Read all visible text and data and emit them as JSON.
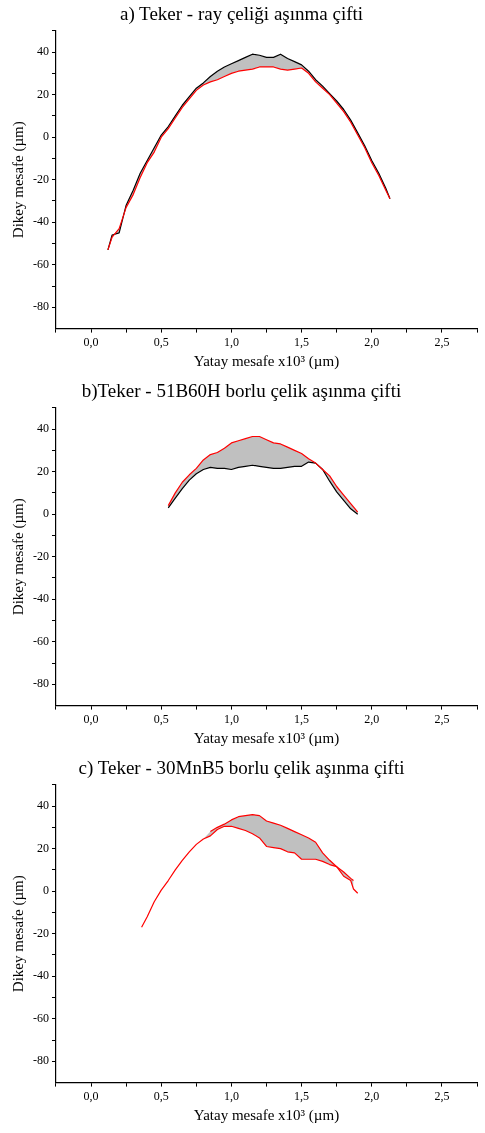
{
  "chart_data": [
    {
      "type": "line",
      "title": "a) Teker - ray çeliği aşınma çifti",
      "xlabel": "Yatay mesafe x10³ (µm)",
      "ylabel": "Dikey mesafe (µm)",
      "x": [
        0.12,
        0.15,
        0.2,
        0.25,
        0.3,
        0.35,
        0.4,
        0.45,
        0.5,
        0.55,
        0.6,
        0.65,
        0.7,
        0.75,
        0.8,
        0.85,
        0.9,
        0.95,
        1.0,
        1.05,
        1.1,
        1.15,
        1.2,
        1.25,
        1.3,
        1.35,
        1.4,
        1.45,
        1.5,
        1.55,
        1.6,
        1.65,
        1.7,
        1.75,
        1.8,
        1.85,
        1.9,
        1.95,
        2.0,
        2.05,
        2.1,
        2.13
      ],
      "series": [
        {
          "color": "#000000",
          "values": [
            -53,
            -46,
            -45,
            -32,
            -25,
            -17,
            -11,
            -5,
            1,
            5,
            10,
            15,
            19,
            23,
            25.5,
            28.5,
            31,
            33,
            34.5,
            36,
            37.5,
            39,
            38.5,
            37.5,
            37.5,
            39,
            37,
            35.5,
            34,
            31,
            27,
            24,
            20.5,
            17,
            13,
            8,
            2,
            -4,
            -11,
            -17,
            -24,
            -29
          ],
          "lower": [
            -53,
            -47,
            -43,
            -33,
            -27,
            -19,
            -12,
            -7,
            0,
            4,
            9,
            14,
            18,
            22,
            24.5,
            26,
            27,
            28.5,
            30,
            31,
            31.5,
            32,
            33,
            33,
            33,
            32,
            31.5,
            32,
            32.5,
            30,
            26,
            23,
            20,
            16,
            12,
            7,
            1,
            -5,
            -12,
            -18,
            -25,
            -29
          ],
          "upper": [
            -53,
            -46,
            -45,
            -32,
            -25,
            -17,
            -11,
            -5,
            1,
            5,
            10,
            15,
            19,
            23,
            25.5,
            28.5,
            31,
            33,
            34.5,
            36,
            37.5,
            39,
            38.5,
            37.5,
            37.5,
            39,
            37,
            35.5,
            34,
            31,
            27,
            24,
            20.5,
            17,
            13,
            8,
            2,
            -4,
            -11,
            -17,
            -24,
            -29
          ]
        },
        {
          "color": "#ff0000",
          "values": [
            -53,
            -47,
            -43,
            -33,
            -27,
            -19,
            -12,
            -7,
            0,
            4,
            9,
            14,
            18,
            22,
            24.5,
            26,
            27,
            28.5,
            30,
            31,
            31.5,
            32,
            33,
            33,
            33,
            32,
            31.5,
            32,
            32.5,
            30,
            26,
            23,
            20,
            16,
            12,
            7,
            1,
            -5,
            -12,
            -18,
            -25,
            -29
          ]
        }
      ],
      "xlim": [
        -0.25,
        2.75
      ],
      "ylim": [
        -90,
        50
      ],
      "xticks": [
        {
          "value": -0.25,
          "label": null
        },
        {
          "value": 0,
          "label": "0,0"
        },
        {
          "value": 0.25,
          "label": null
        },
        {
          "value": 0.5,
          "label": "0,5"
        },
        {
          "value": 0.75,
          "label": null
        },
        {
          "value": 1,
          "label": "1,0"
        },
        {
          "value": 1.25,
          "label": null
        },
        {
          "value": 1.5,
          "label": "1,5"
        },
        {
          "value": 1.75,
          "label": null
        },
        {
          "value": 2,
          "label": "2,0"
        },
        {
          "value": 2.25,
          "label": null
        },
        {
          "value": 2.5,
          "label": "2,5"
        },
        {
          "value": 2.75,
          "label": null
        }
      ],
      "yticks": [
        -80,
        {
          "value": -70,
          "label": null
        },
        -60,
        {
          "value": -50,
          "label": null
        },
        -40,
        {
          "value": -30,
          "label": null
        },
        -20,
        {
          "value": -10,
          "label": null
        },
        0,
        {
          "value": 10,
          "label": null
        },
        20,
        {
          "value": 30,
          "label": null
        },
        40,
        {
          "value": 50,
          "label": null
        }
      ],
      "grid": false
    },
    {
      "type": "line",
      "title": "b)Teker - 51B60H borlu çelik aşınma çifti",
      "xlabel": "Yatay mesafe x10³ (µm)",
      "ylabel": "Dikey mesafe (µm)",
      "x": [
        0.55,
        0.6,
        0.65,
        0.7,
        0.75,
        0.8,
        0.85,
        0.9,
        0.95,
        1.0,
        1.05,
        1.1,
        1.15,
        1.2,
        1.25,
        1.3,
        1.35,
        1.4,
        1.45,
        1.5,
        1.55,
        1.6,
        1.65,
        1.7,
        1.75,
        1.8,
        1.85,
        1.9
      ],
      "series": [
        {
          "color": "#000000",
          "values": [
            3,
            7.5,
            12,
            16,
            19,
            21,
            22,
            21.5,
            21.5,
            21,
            22,
            22.5,
            23,
            22.5,
            22,
            21.5,
            21.5,
            22,
            22.5,
            22.5,
            24.5,
            24,
            21,
            15.5,
            10.5,
            6.5,
            2.5,
            0
          ],
          "lower": [
            3,
            7.5,
            12,
            16,
            19,
            21,
            22,
            21.5,
            21.5,
            21,
            22,
            22.5,
            23,
            22.5,
            22,
            21.5,
            21.5,
            22,
            22.5,
            22.5,
            24.5,
            24,
            21,
            15.5,
            10.5,
            6.5,
            2.5,
            0
          ],
          "upper": [
            4,
            10,
            15,
            18.5,
            21.5,
            25.5,
            28,
            29,
            31,
            33.5,
            34.5,
            35.5,
            36.5,
            36.5,
            35,
            33.5,
            33,
            31.5,
            30,
            28.5,
            26,
            24,
            21,
            18,
            13,
            9,
            5,
            1
          ]
        },
        {
          "color": "#ff0000",
          "values": [
            4,
            10,
            15,
            18.5,
            21.5,
            25.5,
            28,
            29,
            31,
            33.5,
            34.5,
            35.5,
            36.5,
            36.5,
            35,
            33.5,
            33,
            31.5,
            30,
            28.5,
            26,
            24,
            21,
            18,
            13,
            9,
            5,
            1
          ]
        }
      ],
      "xlim": [
        -0.25,
        2.75
      ],
      "ylim": [
        -90,
        50
      ],
      "xticks": [
        {
          "value": -0.25,
          "label": null
        },
        {
          "value": 0,
          "label": "0,0"
        },
        {
          "value": 0.25,
          "label": null
        },
        {
          "value": 0.5,
          "label": "0,5"
        },
        {
          "value": 0.75,
          "label": null
        },
        {
          "value": 1,
          "label": "1,0"
        },
        {
          "value": 1.25,
          "label": null
        },
        {
          "value": 1.5,
          "label": "1,5"
        },
        {
          "value": 1.75,
          "label": null
        },
        {
          "value": 2,
          "label": "2,0"
        },
        {
          "value": 2.25,
          "label": null
        },
        {
          "value": 2.5,
          "label": "2,5"
        },
        {
          "value": 2.75,
          "label": null
        }
      ],
      "yticks": [
        -80,
        {
          "value": -70,
          "label": null
        },
        -60,
        {
          "value": -50,
          "label": null
        },
        -40,
        {
          "value": -30,
          "label": null
        },
        -20,
        {
          "value": -10,
          "label": null
        },
        0,
        {
          "value": 10,
          "label": null
        },
        20,
        {
          "value": 30,
          "label": null
        },
        40,
        {
          "value": 50,
          "label": null
        }
      ],
      "grid": false
    },
    {
      "type": "line",
      "title": "c) Teker - 30MnB5 borlu çelik aşınma çifti",
      "xlabel": "Yatay mesafe x10³ (µm)",
      "ylabel": "Dikey mesafe (µm)",
      "x": [
        0.36,
        0.4,
        0.45,
        0.5,
        0.55,
        0.6,
        0.65,
        0.7,
        0.75,
        0.8,
        0.85,
        0.9,
        0.95,
        1.0,
        1.05,
        1.1,
        1.15,
        1.2,
        1.25,
        1.3,
        1.35,
        1.4,
        1.45,
        1.5,
        1.55,
        1.6,
        1.65,
        1.7,
        1.75,
        1.8,
        1.85,
        1.87,
        1.9
      ],
      "series": [
        {
          "color": "#ff0000",
          "values": [
            null,
            null,
            null,
            null,
            null,
            null,
            null,
            null,
            null,
            null,
            28,
            30,
            31.5,
            33.5,
            35,
            35.5,
            36,
            35.5,
            33,
            32,
            31,
            29.5,
            28,
            26.5,
            25,
            23,
            18,
            14.5,
            11.5,
            9,
            6,
            5,
            null
          ],
          "lower": [
            null,
            null,
            null,
            null,
            null,
            null,
            null,
            null,
            null,
            24.5,
            26,
            29,
            30.5,
            30.5,
            29.5,
            28.5,
            27,
            25,
            21,
            20.5,
            20,
            18.5,
            18,
            15,
            15,
            15,
            14,
            12.5,
            11.5,
            7,
            5,
            1,
            null
          ],
          "upper": [
            null,
            null,
            null,
            null,
            null,
            null,
            null,
            null,
            null,
            24.5,
            28,
            30,
            31.5,
            33.5,
            35,
            35.5,
            36,
            35.5,
            33,
            32,
            31,
            29.5,
            28,
            26.5,
            25,
            23,
            18,
            14.5,
            11.5,
            9,
            6,
            5,
            null
          ]
        },
        {
          "color": "#ff0000",
          "values": [
            -17,
            -12,
            -5,
            0.5,
            5,
            10,
            14.5,
            18.5,
            22,
            24.5,
            26,
            29,
            30.5,
            30.5,
            29.5,
            28.5,
            27,
            25,
            21,
            20.5,
            20,
            18.5,
            18,
            15,
            15,
            15,
            14,
            12.5,
            11.5,
            7,
            5,
            1,
            -1
          ]
        }
      ],
      "xlim": [
        -0.25,
        2.75
      ],
      "ylim": [
        -90,
        50
      ],
      "xticks": [
        {
          "value": -0.25,
          "label": null
        },
        {
          "value": 0,
          "label": "0,0"
        },
        {
          "value": 0.25,
          "label": null
        },
        {
          "value": 0.5,
          "label": "0,5"
        },
        {
          "value": 0.75,
          "label": null
        },
        {
          "value": 1,
          "label": "1,0"
        },
        {
          "value": 1.25,
          "label": null
        },
        {
          "value": 1.5,
          "label": "1,5"
        },
        {
          "value": 1.75,
          "label": null
        },
        {
          "value": 2,
          "label": "2,0"
        },
        {
          "value": 2.25,
          "label": null
        },
        {
          "value": 2.5,
          "label": "2,5"
        },
        {
          "value": 2.75,
          "label": null
        }
      ],
      "yticks": [
        -80,
        {
          "value": -70,
          "label": null
        },
        -60,
        {
          "value": -50,
          "label": null
        },
        -40,
        {
          "value": -30,
          "label": null
        },
        -20,
        {
          "value": -10,
          "label": null
        },
        0,
        {
          "value": 10,
          "label": null
        },
        20,
        {
          "value": 30,
          "label": null
        },
        40,
        {
          "value": 50,
          "label": null
        }
      ],
      "grid": false
    }
  ]
}
